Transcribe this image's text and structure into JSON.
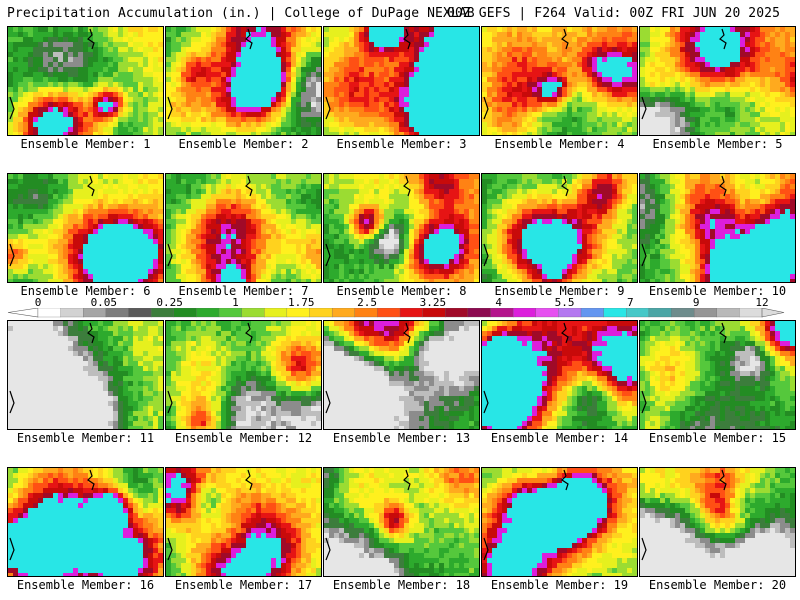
{
  "header": {
    "title_left": "Precipitation Accumulation (in.) | College of DuPage NEXLAB",
    "title_right": "00Z GEFS | F264 Valid: 00Z FRI JUN 20 2025"
  },
  "colorbar": {
    "labels": [
      "0",
      "0.05",
      "0.25",
      "1",
      "1.75",
      "2.5",
      "3.25",
      "4",
      "5.5",
      "7",
      "9",
      "12"
    ],
    "colors": [
      "#ffffff",
      "#d2d2d2",
      "#a5a5a5",
      "#7d7d7d",
      "#5a5a5a",
      "#3c7d3c",
      "#238c23",
      "#2daa2d",
      "#55c83c",
      "#9bdc32",
      "#e6f01e",
      "#fff01e",
      "#ffd21e",
      "#ffaa1e",
      "#ff8214",
      "#ff5014",
      "#e61414",
      "#c80a0a",
      "#a00a28",
      "#8c0a50",
      "#b4148c",
      "#dc1edc",
      "#e650f0",
      "#b478f0",
      "#6496f0",
      "#28e6e6",
      "#46c8c8",
      "#4ba5a5",
      "#6e8c8c",
      "#969696",
      "#b9b9b9",
      "#dcdcdc"
    ]
  },
  "panels": [
    {
      "label": "Ensemble Member: 1",
      "wetness": 0.62
    },
    {
      "label": "Ensemble Member: 2",
      "wetness": 0.55
    },
    {
      "label": "Ensemble Member: 3",
      "wetness": 0.6
    },
    {
      "label": "Ensemble Member: 4",
      "wetness": 0.72
    },
    {
      "label": "Ensemble Member: 5",
      "wetness": 0.64
    },
    {
      "label": "Ensemble Member: 6",
      "wetness": 0.66
    },
    {
      "label": "Ensemble Member: 7",
      "wetness": 0.62
    },
    {
      "label": "Ensemble Member: 8",
      "wetness": 0.7
    },
    {
      "label": "Ensemble Member: 9",
      "wetness": 0.5
    },
    {
      "label": "Ensemble Member: 10",
      "wetness": 0.68
    },
    {
      "label": "Ensemble Member: 11",
      "wetness": 0.48
    },
    {
      "label": "Ensemble Member: 12",
      "wetness": 0.46
    },
    {
      "label": "Ensemble Member: 13",
      "wetness": 0.5
    },
    {
      "label": "Ensemble Member: 14",
      "wetness": 0.44
    },
    {
      "label": "Ensemble Member: 15",
      "wetness": 0.42
    },
    {
      "label": "Ensemble Member: 16",
      "wetness": 0.56
    },
    {
      "label": "Ensemble Member: 17",
      "wetness": 0.54
    },
    {
      "label": "Ensemble Member: 18",
      "wetness": 0.5
    },
    {
      "label": "Ensemble Member: 19",
      "wetness": 0.58
    },
    {
      "label": "Ensemble Member: 20",
      "wetness": 0.34
    }
  ]
}
